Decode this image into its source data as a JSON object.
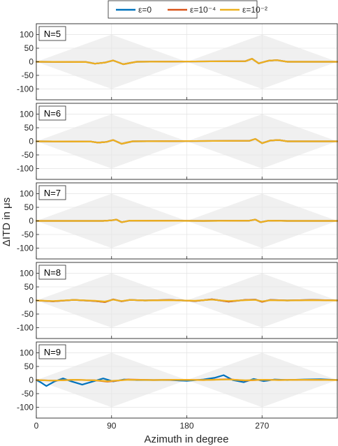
{
  "chart_data": {
    "type": "line",
    "xlabel": "Azimuth in degree",
    "ylabel": "ΔITD in μs",
    "xlim": [
      0,
      360
    ],
    "ylim": [
      -140,
      140
    ],
    "xticks": [
      0,
      90,
      180,
      270
    ],
    "yticks": [
      100,
      50,
      0,
      -50,
      -100
    ],
    "grid": true,
    "legend_position": "top",
    "legend": [
      {
        "name": "ε=0",
        "color": "#0072BD"
      },
      {
        "name": "ε=10⁻⁴",
        "color": "#D95319"
      },
      {
        "name": "ε=10⁻²",
        "color": "#EDB120"
      }
    ],
    "envelope": {
      "color": "#f0f0f0",
      "x": [
        0,
        90,
        180,
        270,
        360
      ],
      "upper": [
        0,
        100,
        0,
        100,
        0
      ],
      "lower": [
        0,
        -100,
        0,
        -100,
        0
      ]
    },
    "panels": [
      {
        "label": "N=5",
        "series": [
          {
            "name": "ε=0",
            "x": [
              0,
              60,
              70,
              82,
              92,
              104,
              120,
              250,
              258,
              266,
              278,
              288,
              300,
              360
            ],
            "y": [
              0,
              -1,
              -7,
              -3,
              5,
              -9,
              0,
              2,
              11,
              -6,
              4,
              6,
              0,
              0
            ]
          },
          {
            "name": "ε=10⁻⁴",
            "x": [
              0,
              60,
              70,
              82,
              92,
              104,
              120,
              250,
              258,
              266,
              278,
              288,
              300,
              360
            ],
            "y": [
              0,
              -1,
              -7,
              -3,
              5,
              -9,
              0,
              2,
              11,
              -6,
              4,
              6,
              0,
              0
            ]
          },
          {
            "name": "ε=10⁻²",
            "x": [
              0,
              60,
              70,
              82,
              92,
              104,
              120,
              250,
              258,
              266,
              278,
              288,
              300,
              360
            ],
            "y": [
              0,
              -1,
              -7,
              -3,
              5,
              -9,
              0,
              2,
              11,
              -6,
              4,
              6,
              0,
              0
            ]
          }
        ]
      },
      {
        "label": "N=6",
        "series": [
          {
            "name": "ε=0",
            "x": [
              0,
              66,
              74,
              84,
              92,
              102,
              115,
              255,
              262,
              270,
              280,
              290,
              300,
              360
            ],
            "y": [
              0,
              -1,
              -5,
              -2,
              5,
              -9,
              0,
              2,
              9,
              -7,
              3,
              5,
              0,
              0
            ]
          },
          {
            "name": "ε=10⁻⁴",
            "x": [
              0,
              66,
              74,
              84,
              92,
              102,
              115,
              255,
              262,
              270,
              280,
              290,
              300,
              360
            ],
            "y": [
              0,
              -1,
              -5,
              -2,
              5,
              -9,
              0,
              2,
              9,
              -7,
              3,
              5,
              0,
              0
            ]
          },
          {
            "name": "ε=10⁻²",
            "x": [
              0,
              66,
              74,
              84,
              92,
              102,
              115,
              255,
              262,
              270,
              280,
              290,
              300,
              360
            ],
            "y": [
              0,
              -1,
              -5,
              -2,
              5,
              -9,
              0,
              2,
              9,
              -7,
              3,
              5,
              0,
              0
            ]
          }
        ]
      },
      {
        "label": "N=7",
        "series": [
          {
            "name": "ε=0",
            "x": [
              0,
              40,
              80,
              90,
              96,
              102,
              112,
              200,
              255,
              262,
              268,
              278,
              300,
              360
            ],
            "y": [
              0,
              0,
              0,
              2,
              5,
              -5,
              1,
              0,
              1,
              5,
              -5,
              1,
              0,
              0
            ]
          },
          {
            "name": "ε=10⁻⁴",
            "x": [
              0,
              40,
              80,
              90,
              96,
              102,
              112,
              200,
              255,
              262,
              268,
              278,
              300,
              360
            ],
            "y": [
              0,
              0,
              0,
              2,
              5,
              -5,
              1,
              0,
              1,
              5,
              -5,
              1,
              0,
              0
            ]
          },
          {
            "name": "ε=10⁻²",
            "x": [
              0,
              40,
              80,
              90,
              96,
              102,
              112,
              200,
              255,
              262,
              268,
              278,
              300,
              360
            ],
            "y": [
              0,
              0,
              0,
              2,
              5,
              -5,
              1,
              0,
              1,
              5,
              -5,
              1,
              0,
              0
            ]
          }
        ]
      },
      {
        "label": "N=8",
        "series": [
          {
            "name": "ε=0",
            "x": [
              0,
              20,
              45,
              70,
              82,
              92,
              102,
              112,
              130,
              160,
              190,
              210,
              230,
              250,
              262,
              270,
              280,
              300,
              330,
              360
            ],
            "y": [
              0,
              -3,
              2,
              -2,
              -6,
              4,
              -3,
              2,
              0,
              2,
              -2,
              4,
              -4,
              2,
              3,
              -5,
              2,
              0,
              2,
              0
            ]
          },
          {
            "name": "ε=10⁻⁴",
            "x": [
              0,
              20,
              45,
              70,
              82,
              92,
              102,
              112,
              130,
              160,
              190,
              210,
              230,
              250,
              262,
              270,
              280,
              300,
              330,
              360
            ],
            "y": [
              0,
              -3,
              2,
              -2,
              -6,
              4,
              -3,
              2,
              0,
              2,
              -2,
              4,
              -4,
              2,
              3,
              -5,
              2,
              0,
              2,
              0
            ]
          },
          {
            "name": "ε=10⁻²",
            "x": [
              0,
              20,
              45,
              70,
              82,
              92,
              102,
              112,
              130,
              160,
              190,
              210,
              230,
              250,
              262,
              270,
              280,
              300,
              330,
              360
            ],
            "y": [
              0,
              -2,
              2,
              -1,
              -4,
              3,
              -2,
              2,
              0,
              1,
              -1,
              3,
              -2,
              1,
              2,
              -3,
              1,
              0,
              1,
              0
            ]
          }
        ]
      },
      {
        "label": "N=9",
        "series": [
          {
            "name": "ε=0",
            "x": [
              0,
              5,
              12,
              22,
              32,
              42,
              55,
              68,
              80,
              92,
              105,
              120,
              140,
              160,
              180,
              200,
              213,
              224,
              235,
              248,
              260,
              272,
              285,
              300,
              320,
              340,
              360
            ],
            "y": [
              0,
              -8,
              -22,
              -5,
              6,
              -5,
              -17,
              -5,
              6,
              -5,
              2,
              0,
              0,
              0,
              -3,
              2,
              8,
              18,
              0,
              -8,
              4,
              -4,
              2,
              0,
              2,
              3,
              0
            ]
          },
          {
            "name": "ε=10⁻⁴",
            "x": [
              0,
              20,
              45,
              70,
              85,
              95,
              110,
              140,
              170,
              200,
              230,
              250,
              270,
              290,
              320,
              360
            ],
            "y": [
              0,
              -2,
              1,
              -1,
              -6,
              -3,
              2,
              0,
              1,
              0,
              3,
              -2,
              1,
              0,
              1,
              0
            ]
          },
          {
            "name": "ε=10⁻²",
            "x": [
              0,
              20,
              45,
              70,
              85,
              95,
              110,
              140,
              170,
              200,
              230,
              250,
              270,
              290,
              320,
              360
            ],
            "y": [
              0,
              -2,
              1,
              -1,
              -4,
              -2,
              1,
              0,
              1,
              0,
              2,
              -1,
              1,
              0,
              1,
              0
            ]
          }
        ]
      }
    ]
  }
}
